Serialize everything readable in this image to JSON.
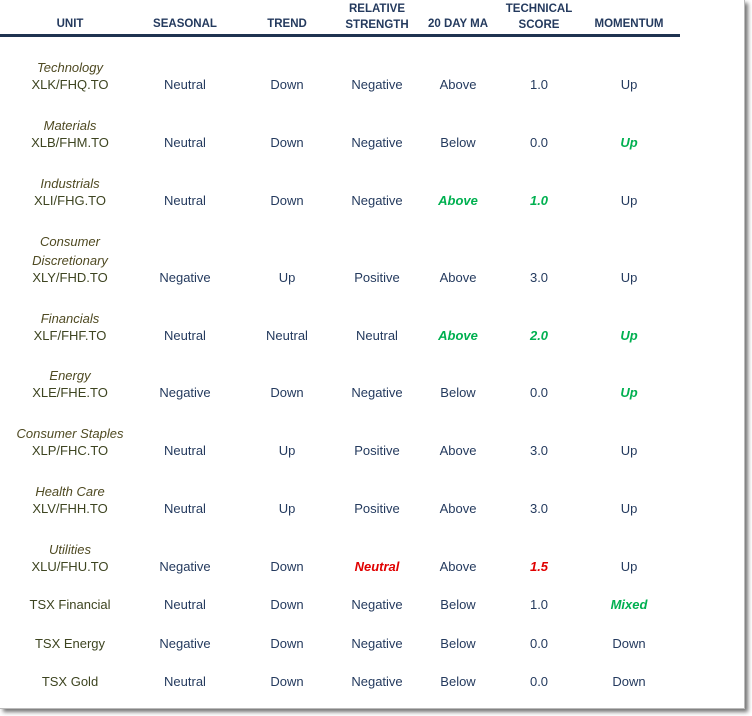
{
  "headers": [
    {
      "key": "unit",
      "label": "UNIT"
    },
    {
      "key": "seasonal",
      "label": "SEASONAL"
    },
    {
      "key": "trend",
      "label": "TREND"
    },
    {
      "key": "relative_strength",
      "label": "RELATIVE\nSTRENGTH"
    },
    {
      "key": "ma20",
      "label": "20 DAY MA"
    },
    {
      "key": "technical_score",
      "label": "TECHNICAL\nSCORE"
    },
    {
      "key": "momentum",
      "label": "MOMENTUM"
    }
  ],
  "colors": {
    "text": "#243a5e",
    "positive_highlight": "#00b050",
    "negative_highlight": "#e00000",
    "category": "#4f4a22"
  },
  "rows": [
    {
      "category": "Technology",
      "unit": "XLK/FHQ.TO",
      "cells": [
        {
          "text": "Neutral"
        },
        {
          "text": "Down"
        },
        {
          "text": "Negative"
        },
        {
          "text": "Above"
        },
        {
          "text": "1.0"
        },
        {
          "text": "Up"
        }
      ]
    },
    {
      "category": "Materials",
      "unit": "XLB/FHM.TO",
      "cells": [
        {
          "text": "Neutral"
        },
        {
          "text": "Down"
        },
        {
          "text": "Negative"
        },
        {
          "text": "Below"
        },
        {
          "text": "0.0"
        },
        {
          "text": "Up",
          "hl": "g"
        }
      ]
    },
    {
      "category": "Industrials",
      "unit": "XLI/FHG.TO",
      "cells": [
        {
          "text": "Neutral"
        },
        {
          "text": "Down"
        },
        {
          "text": "Negative"
        },
        {
          "text": "Above",
          "hl": "g"
        },
        {
          "text": "1.0",
          "hl": "g"
        },
        {
          "text": "Up"
        }
      ]
    },
    {
      "category": "Consumer\nDiscretionary",
      "unit": "XLY/FHD.TO",
      "cells": [
        {
          "text": "Negative"
        },
        {
          "text": "Up"
        },
        {
          "text": "Positive"
        },
        {
          "text": "Above"
        },
        {
          "text": "3.0"
        },
        {
          "text": "Up"
        }
      ]
    },
    {
      "category": "Financials",
      "unit": "XLF/FHF.TO",
      "cells": [
        {
          "text": "Neutral"
        },
        {
          "text": "Neutral"
        },
        {
          "text": "Neutral"
        },
        {
          "text": "Above",
          "hl": "g"
        },
        {
          "text": "2.0",
          "hl": "g"
        },
        {
          "text": "Up",
          "hl": "g"
        }
      ]
    },
    {
      "category": "Energy",
      "unit": "XLE/FHE.TO",
      "cells": [
        {
          "text": "Negative"
        },
        {
          "text": "Down"
        },
        {
          "text": "Negative"
        },
        {
          "text": "Below"
        },
        {
          "text": "0.0"
        },
        {
          "text": "Up",
          "hl": "g"
        }
      ]
    },
    {
      "category": "Consumer Staples",
      "unit": "XLP/FHC.TO",
      "cells": [
        {
          "text": "Neutral"
        },
        {
          "text": "Up"
        },
        {
          "text": "Positive"
        },
        {
          "text": "Above"
        },
        {
          "text": "3.0"
        },
        {
          "text": "Up"
        }
      ]
    },
    {
      "category": "Health Care",
      "unit": "XLV/FHH.TO",
      "cells": [
        {
          "text": "Neutral"
        },
        {
          "text": "Up"
        },
        {
          "text": "Positive"
        },
        {
          "text": "Above"
        },
        {
          "text": "3.0"
        },
        {
          "text": "Up"
        }
      ]
    },
    {
      "category": "Utilities",
      "unit": "XLU/FHU.TO",
      "cells": [
        {
          "text": "Negative"
        },
        {
          "text": "Down"
        },
        {
          "text": "Neutral",
          "hl": "r"
        },
        {
          "text": "Above"
        },
        {
          "text": "1.5",
          "hl": "r"
        },
        {
          "text": "Up"
        }
      ]
    },
    {
      "category": "",
      "unit": "TSX Financial",
      "cells": [
        {
          "text": "Neutral"
        },
        {
          "text": "Down"
        },
        {
          "text": "Negative"
        },
        {
          "text": "Below"
        },
        {
          "text": "1.0"
        },
        {
          "text": "Mixed",
          "hl": "g"
        }
      ]
    },
    {
      "category": "",
      "unit": "TSX Energy",
      "cells": [
        {
          "text": "Negative"
        },
        {
          "text": "Down"
        },
        {
          "text": "Negative"
        },
        {
          "text": "Below"
        },
        {
          "text": "0.0"
        },
        {
          "text": "Down"
        }
      ]
    },
    {
      "category": "",
      "unit": "TSX Gold",
      "cells": [
        {
          "text": "Neutral"
        },
        {
          "text": "Down"
        },
        {
          "text": "Negative"
        },
        {
          "text": "Below"
        },
        {
          "text": "0.0"
        },
        {
          "text": "Down"
        }
      ]
    }
  ]
}
